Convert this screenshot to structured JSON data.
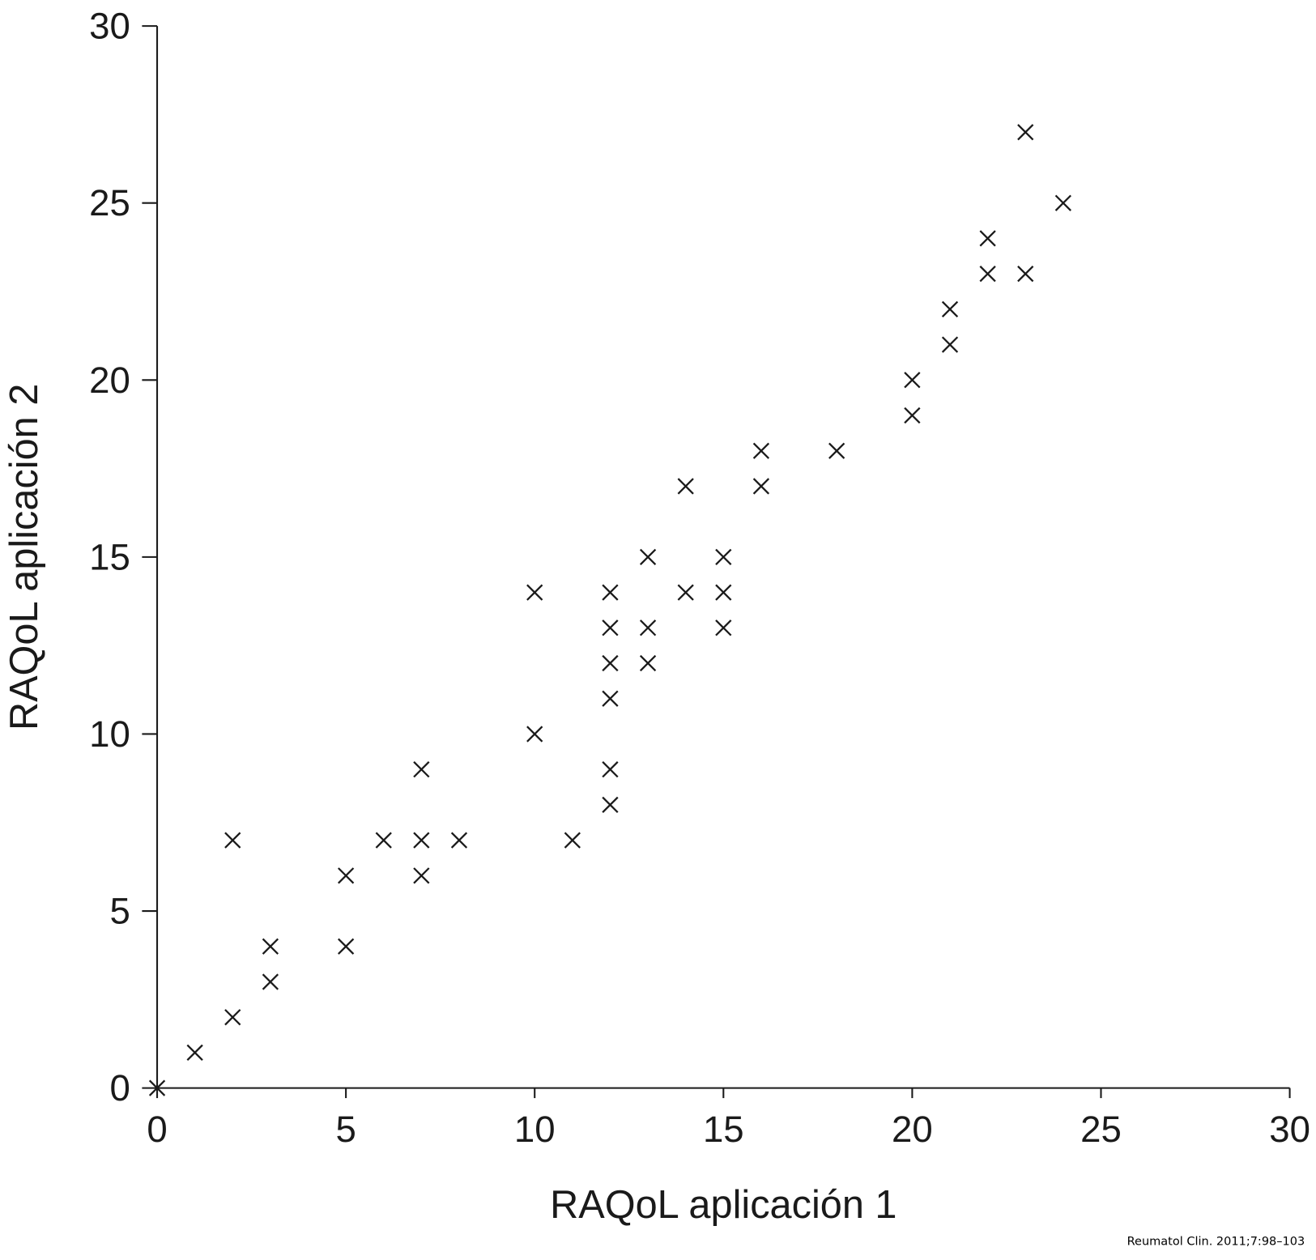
{
  "chart_data": {
    "type": "scatter",
    "title": "",
    "xlabel": "RAQoL aplicación 1",
    "ylabel": "RAQoL aplicación 2",
    "xlim": [
      0,
      30
    ],
    "ylim": [
      0,
      30
    ],
    "xticks": [
      0,
      5,
      10,
      15,
      20,
      25,
      30
    ],
    "yticks": [
      0,
      5,
      10,
      15,
      20,
      25,
      30
    ],
    "grid": false,
    "marker": "x",
    "marker_color": "#1a1a1a",
    "points": [
      [
        0,
        0
      ],
      [
        1,
        1
      ],
      [
        2,
        2
      ],
      [
        2,
        7
      ],
      [
        3,
        3
      ],
      [
        3,
        4
      ],
      [
        5,
        4
      ],
      [
        5,
        6
      ],
      [
        6,
        7
      ],
      [
        7,
        6
      ],
      [
        7,
        7
      ],
      [
        7,
        9
      ],
      [
        8,
        7
      ],
      [
        10,
        10
      ],
      [
        10,
        14
      ],
      [
        11,
        7
      ],
      [
        12,
        8
      ],
      [
        12,
        9
      ],
      [
        12,
        11
      ],
      [
        12,
        12
      ],
      [
        12,
        13
      ],
      [
        12,
        14
      ],
      [
        13,
        12
      ],
      [
        13,
        13
      ],
      [
        13,
        15
      ],
      [
        14,
        14
      ],
      [
        14,
        17
      ],
      [
        15,
        13
      ],
      [
        15,
        14
      ],
      [
        15,
        15
      ],
      [
        16,
        17
      ],
      [
        16,
        18
      ],
      [
        18,
        18
      ],
      [
        20,
        19
      ],
      [
        20,
        20
      ],
      [
        21,
        21
      ],
      [
        21,
        22
      ],
      [
        22,
        23
      ],
      [
        22,
        24
      ],
      [
        23,
        23
      ],
      [
        23,
        27
      ],
      [
        24,
        25
      ]
    ]
  },
  "citation": "Reumatol Clin. 2011;7:98–103"
}
